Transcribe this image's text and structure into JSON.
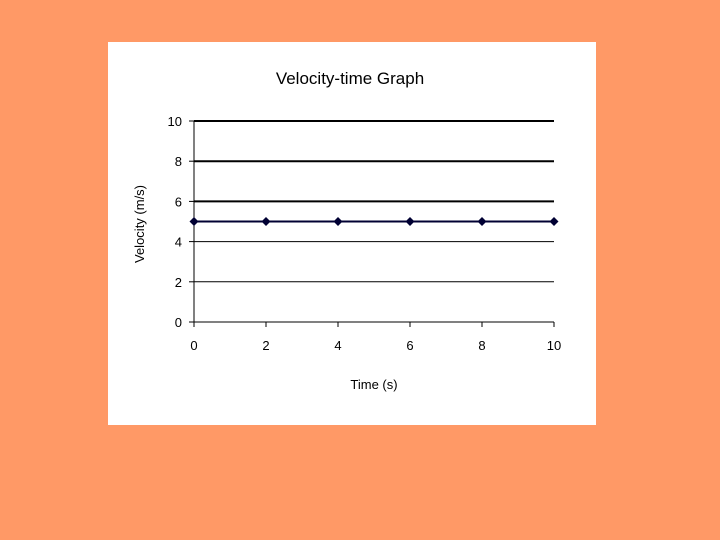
{
  "colors": {
    "background": "#FF9966",
    "panel": "#FFFFFF",
    "gridline": "#000000",
    "series": "#000033"
  },
  "chart_data": {
    "type": "line",
    "title": "Velocity-time Graph",
    "xlabel": "Time (s)",
    "ylabel": "Velocity (m/s)",
    "xlim": [
      0,
      10
    ],
    "ylim": [
      0,
      10
    ],
    "x_ticks": [
      0,
      2,
      4,
      6,
      8,
      10
    ],
    "y_ticks": [
      0,
      2,
      4,
      6,
      8,
      10
    ],
    "grid": true,
    "legend": "none",
    "series": [
      {
        "x": [
          0,
          2,
          4,
          6,
          8,
          10
        ],
        "y": [
          5,
          5,
          5,
          5,
          5,
          5
        ],
        "marker": "diamond"
      }
    ]
  }
}
